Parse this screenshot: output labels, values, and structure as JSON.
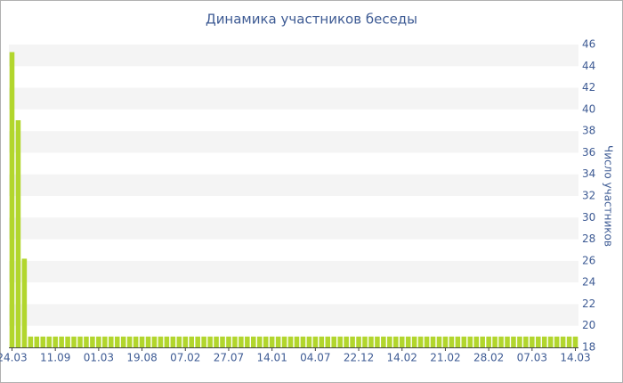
{
  "chart_data": {
    "type": "bar",
    "title": "Динамика участников беседы",
    "y_label": "Число участников",
    "categories": [
      "24.03",
      null,
      null,
      null,
      null,
      null,
      null,
      "11.09",
      null,
      null,
      null,
      null,
      null,
      null,
      "01.03",
      null,
      null,
      null,
      null,
      null,
      null,
      "19.08",
      null,
      null,
      null,
      null,
      null,
      null,
      "07.02",
      null,
      null,
      null,
      null,
      null,
      null,
      "27.07",
      null,
      null,
      null,
      null,
      null,
      null,
      "14.01",
      null,
      null,
      null,
      null,
      null,
      null,
      "04.07",
      null,
      null,
      null,
      null,
      null,
      null,
      "22.12",
      null,
      null,
      null,
      null,
      null,
      null,
      "14.02",
      null,
      null,
      null,
      null,
      null,
      null,
      "21.02",
      null,
      null,
      null,
      null,
      null,
      null,
      "28.02",
      null,
      null,
      null,
      null,
      null,
      null,
      "07.03",
      null,
      null,
      null,
      null,
      null,
      null,
      "14.03"
    ],
    "values": [
      45.3,
      39,
      26.2,
      19,
      19,
      19,
      19,
      19,
      19,
      19,
      19,
      19,
      19,
      19,
      19,
      19,
      19,
      19,
      19,
      19,
      19,
      19,
      19,
      19,
      19,
      19,
      19,
      19,
      19,
      19,
      19,
      19,
      19,
      19,
      19,
      19,
      19,
      19,
      19,
      19,
      19,
      19,
      19,
      19,
      19,
      19,
      19,
      19,
      19,
      19,
      19,
      19,
      19,
      19,
      19,
      19,
      19,
      19,
      19,
      19,
      19,
      19,
      19,
      19,
      19,
      19,
      19,
      19,
      19,
      19,
      19,
      19,
      19,
      19,
      19,
      19,
      19,
      19,
      19,
      19,
      19,
      19,
      19,
      19,
      19,
      19,
      19,
      19,
      19,
      19,
      19,
      19
    ],
    "color": "#b2d62d",
    "ylim": [
      18,
      46
    ],
    "yticks": [
      18,
      20,
      22,
      24,
      26,
      28,
      30,
      32,
      34,
      36,
      38,
      40,
      42,
      44,
      46
    ],
    "grid": true
  }
}
